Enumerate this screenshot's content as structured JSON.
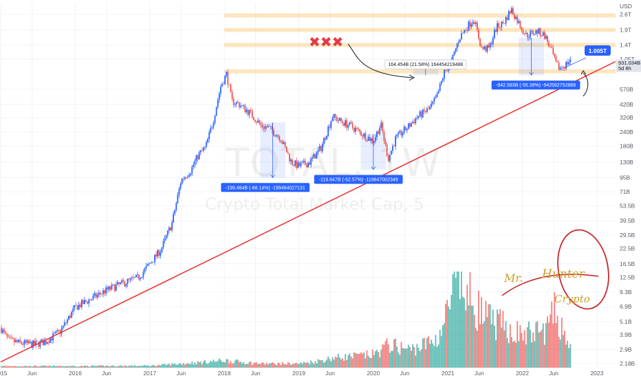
{
  "chart_data": {
    "type": "candlestick",
    "title": "TOTAL, 1W",
    "subtitle": "Crypto Total Market Cap, 5",
    "y_axis": {
      "scale": "log",
      "currency_label": "USD",
      "ticks": [
        "2.6T",
        "1.9T",
        "1.4T",
        "1.05T",
        "570B",
        "420B",
        "320B",
        "240B",
        "180B",
        "130B",
        "95B",
        "71B",
        "53.5B",
        "39.5B",
        "29.5B",
        "22.5B",
        "16.5B",
        "12.5B",
        "9.3B",
        "6.9B",
        "5.1B",
        "3.9B",
        "2.9B",
        "2.18B"
      ],
      "tick_values": [
        2600,
        1900,
        1400,
        1050,
        570,
        420,
        320,
        240,
        180,
        130,
        95,
        71,
        53.5,
        39.5,
        29.5,
        22.5,
        16.5,
        12.5,
        9.3,
        6.9,
        5.1,
        3.9,
        2.9,
        2.18
      ],
      "range_billions": [
        2.0,
        3300
      ]
    },
    "x_axis": {
      "ticks": [
        "2015",
        "Jun",
        "2016",
        "Jun",
        "2017",
        "Jun",
        "2018",
        "Jun",
        "2019",
        "Jun",
        "2020",
        "Jun",
        "2021",
        "Jun",
        "2022",
        "Jun",
        "2023"
      ],
      "tick_dates": [
        2015.0,
        2015.42,
        2016.0,
        2016.42,
        2017.0,
        2017.42,
        2018.0,
        2018.42,
        2019.0,
        2019.42,
        2020.0,
        2020.42,
        2021.0,
        2021.42,
        2022.0,
        2022.42,
        2023.0
      ],
      "range_years": [
        2014.99,
        2023.25
      ]
    },
    "price_path": [
      [
        2015.0,
        4.5
      ],
      [
        2015.1,
        3.5
      ],
      [
        2015.25,
        3.3
      ],
      [
        2015.45,
        3.2
      ],
      [
        2015.6,
        3.4
      ],
      [
        2015.8,
        4.2
      ],
      [
        2016.0,
        6.8
      ],
      [
        2016.2,
        8.0
      ],
      [
        2016.4,
        9.5
      ],
      [
        2016.55,
        10.5
      ],
      [
        2016.7,
        11.5
      ],
      [
        2016.85,
        12.5
      ],
      [
        2017.0,
        16.5
      ],
      [
        2017.15,
        22
      ],
      [
        2017.3,
        38
      ],
      [
        2017.42,
        90
      ],
      [
        2017.55,
        110
      ],
      [
        2017.65,
        150
      ],
      [
        2017.75,
        175
      ],
      [
        2017.85,
        300
      ],
      [
        2017.95,
        600
      ],
      [
        2018.03,
        780
      ],
      [
        2018.1,
        450
      ],
      [
        2018.2,
        420
      ],
      [
        2018.35,
        350
      ],
      [
        2018.5,
        270
      ],
      [
        2018.6,
        260
      ],
      [
        2018.75,
        215
      ],
      [
        2018.9,
        130
      ],
      [
        2019.0,
        120
      ],
      [
        2019.15,
        130
      ],
      [
        2019.3,
        175
      ],
      [
        2019.45,
        330
      ],
      [
        2019.55,
        300
      ],
      [
        2019.7,
        270
      ],
      [
        2019.85,
        230
      ],
      [
        2020.0,
        200
      ],
      [
        2020.1,
        280
      ],
      [
        2020.2,
        140
      ],
      [
        2020.3,
        210
      ],
      [
        2020.45,
        260
      ],
      [
        2020.6,
        330
      ],
      [
        2020.75,
        380
      ],
      [
        2020.85,
        480
      ],
      [
        2020.95,
        800
      ],
      [
        2021.05,
        1000
      ],
      [
        2021.15,
        1600
      ],
      [
        2021.25,
        2000
      ],
      [
        2021.35,
        2400
      ],
      [
        2021.45,
        1300
      ],
      [
        2021.55,
        1300
      ],
      [
        2021.65,
        2000
      ],
      [
        2021.75,
        2200
      ],
      [
        2021.85,
        2900
      ],
      [
        2021.95,
        2200
      ],
      [
        2022.05,
        1700
      ],
      [
        2022.2,
        1850
      ],
      [
        2022.3,
        1700
      ],
      [
        2022.4,
        1200
      ],
      [
        2022.45,
        950
      ],
      [
        2022.5,
        870
      ],
      [
        2022.58,
        940
      ],
      [
        2022.65,
        1050
      ]
    ],
    "volume_path": [
      [
        2015.0,
        0.02
      ],
      [
        2016.0,
        0.02
      ],
      [
        2017.0,
        0.025
      ],
      [
        2017.42,
        0.05
      ],
      [
        2018.0,
        0.09
      ],
      [
        2018.5,
        0.05
      ],
      [
        2019.0,
        0.05
      ],
      [
        2019.45,
        0.12
      ],
      [
        2020.0,
        0.16
      ],
      [
        2020.2,
        0.28
      ],
      [
        2020.5,
        0.22
      ],
      [
        2020.85,
        0.35
      ],
      [
        2021.0,
        0.7
      ],
      [
        2021.1,
        1.0
      ],
      [
        2021.35,
        0.8
      ],
      [
        2021.5,
        0.6
      ],
      [
        2021.75,
        0.5
      ],
      [
        2022.0,
        0.4
      ],
      [
        2022.3,
        0.45
      ],
      [
        2022.45,
        0.7
      ],
      [
        2022.65,
        0.28
      ]
    ],
    "last_price_label": "931.034B",
    "countdown_label": "5d 8h",
    "callout_label": "1.005T",
    "support_line": {
      "from": [
        2015.0,
        2.25
      ],
      "to": [
        2023.25,
        1000
      ],
      "color": "#e53935"
    },
    "resistance_zones": [
      {
        "value_billions": 2550,
        "label": ""
      },
      {
        "value_billions": 1900,
        "label": ""
      },
      {
        "value_billions": 1400,
        "label": ""
      },
      {
        "value_billions": 820,
        "label": ""
      }
    ],
    "measurements": [
      {
        "label": "-199.464B (-68.14%) -199464027131",
        "from": [
          2018.65,
          290
        ],
        "to": [
          2018.65,
          95
        ],
        "anchor_x": 2018.55
      },
      {
        "label": "-119.847B (-52.57%) -119847002349",
        "from": [
          2020.0,
          230
        ],
        "to": [
          2020.0,
          112
        ],
        "anchor_x": 2019.8
      },
      {
        "label": "164.454B (21.58%) 164454219488",
        "from": [
          2020.7,
          760
        ],
        "to": [
          2020.7,
          920
        ],
        "anchor_x": 2020.7
      },
      {
        "label": "-942.593B (-55.39%) -942592752889",
        "from": [
          2022.12,
          1620
        ],
        "to": [
          2022.12,
          760
        ],
        "anchor_x": 2022.18
      }
    ],
    "marks": {
      "symbol": "✖✖✖",
      "color": "#e53946"
    },
    "signature": {
      "line1": "Mr.",
      "line2": "Hunter",
      "line3": "Crypto"
    },
    "colors": {
      "up": "#2962ff",
      "down": "#ef5350",
      "volume_up": "#26a69a",
      "volume_down": "#ef5350",
      "zone": "#fbd38d",
      "measure": "#2962ff"
    }
  }
}
